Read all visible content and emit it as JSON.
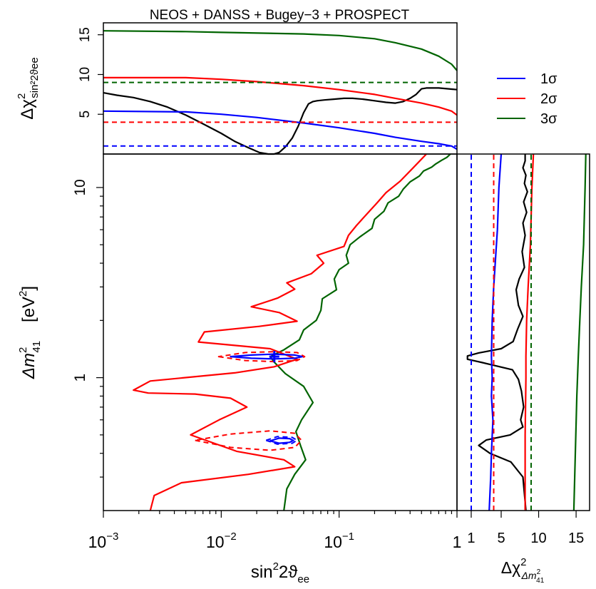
{
  "chart_data": [
    {
      "panel": "top",
      "type": "line",
      "title": "NEOS + DANSS + Bugey−3 + PROSPECT",
      "ylabel_main": "Δχ",
      "ylabel_sup": "2",
      "ylabel_sub": "sin²2ϑee",
      "xscale": "log",
      "xlim": [
        0.001,
        1
      ],
      "ylim": [
        0,
        16.5
      ],
      "yticks": [
        5,
        10,
        15
      ],
      "ytick_labels": [
        "5",
        "10",
        "15"
      ],
      "series": [
        {
          "name": "Δχ² profile",
          "color": "#000000",
          "x": [
            0.001,
            0.0013,
            0.0018,
            0.0025,
            0.0035,
            0.005,
            0.007,
            0.01,
            0.013,
            0.017,
            0.021,
            0.025,
            0.028,
            0.031,
            0.035,
            0.04,
            0.045,
            0.05,
            0.055,
            0.06,
            0.065,
            0.075,
            0.09,
            0.11,
            0.13,
            0.16,
            0.2,
            0.25,
            0.3,
            0.35,
            0.4,
            0.45,
            0.5,
            0.55,
            0.6,
            0.7,
            0.85,
            1
          ],
          "y": [
            7.7,
            7.4,
            7.1,
            6.6,
            5.9,
            4.9,
            3.8,
            2.6,
            1.6,
            0.8,
            0.2,
            0.0,
            0.0,
            0.2,
            0.9,
            2.0,
            3.5,
            5.2,
            6.3,
            6.6,
            6.7,
            6.8,
            6.9,
            7.0,
            7.0,
            6.9,
            6.7,
            6.5,
            6.4,
            6.6,
            7.0,
            7.5,
            8.2,
            8.3,
            8.3,
            8.3,
            8.2,
            8.1
          ]
        },
        {
          "name": "3σ curve",
          "color": "#006400",
          "x": [
            0.001,
            0.005,
            0.01,
            0.05,
            0.1,
            0.2,
            0.3,
            0.5,
            0.7,
            0.9,
            1
          ],
          "y": [
            15.5,
            15.4,
            15.3,
            15.1,
            14.9,
            14.5,
            14.0,
            13.2,
            12.3,
            11.3,
            10.5
          ]
        },
        {
          "name": "2σ curve",
          "color": "#ff0000",
          "x": [
            0.001,
            0.005,
            0.01,
            0.02,
            0.05,
            0.1,
            0.2,
            0.3,
            0.5,
            0.7,
            0.9,
            1
          ],
          "y": [
            9.6,
            9.6,
            9.4,
            9.1,
            8.6,
            8.1,
            7.5,
            7.0,
            6.4,
            5.9,
            5.4,
            4.9
          ]
        },
        {
          "name": "1σ curve",
          "color": "#0000ff",
          "x": [
            0.001,
            0.005,
            0.01,
            0.02,
            0.05,
            0.1,
            0.2,
            0.3,
            0.5,
            0.7,
            0.9,
            1
          ],
          "y": [
            5.4,
            5.3,
            5.0,
            4.6,
            3.9,
            3.3,
            2.6,
            2.1,
            1.6,
            1.3,
            1.0,
            0.6
          ]
        },
        {
          "name": "3σ level",
          "color": "#006400",
          "dashed": true,
          "x": [
            0.001,
            1
          ],
          "y": [
            9.0,
            9.0
          ]
        },
        {
          "name": "2σ level",
          "color": "#ff0000",
          "dashed": true,
          "x": [
            0.001,
            1
          ],
          "y": [
            4.0,
            4.0
          ]
        },
        {
          "name": "1σ level",
          "color": "#0000ff",
          "dashed": true,
          "x": [
            0.001,
            1
          ],
          "y": [
            1.0,
            1.0
          ]
        }
      ]
    },
    {
      "panel": "main",
      "type": "line",
      "xlabel_main": "sin",
      "xlabel_sup": "2",
      "xlabel_mid": "2ϑ",
      "xlabel_sub": "ee",
      "ylabel_main": "Δm",
      "ylabel_sup": "2",
      "ylabel_sub": "41",
      "ylabel_unit": "[eV",
      "ylabel_unit_sup": "2",
      "ylabel_unit_end": "]",
      "xscale": "log",
      "yscale": "log",
      "xlim": [
        0.001,
        1
      ],
      "ylim": [
        0.2,
        15
      ],
      "xticks": [
        0.001,
        0.01,
        0.1,
        1
      ],
      "xtick_labels": [
        {
          "base": "10",
          "exp": "−3"
        },
        {
          "base": "10",
          "exp": "−2"
        },
        {
          "base": "10",
          "exp": "−1"
        },
        {
          "base": "1",
          "exp": ""
        }
      ],
      "yticks": [
        1,
        10
      ],
      "ytick_labels": [
        "1",
        "10"
      ],
      "best_fit": {
        "x": 0.0282,
        "y": 1.29,
        "color": "#0000ff"
      },
      "series": [
        {
          "name": "3σ exclusion",
          "color": "#006400",
          "x": [
            0.034,
            0.036,
            0.042,
            0.052,
            0.047,
            0.043,
            0.048,
            0.06,
            0.05,
            0.035,
            0.028,
            0.026,
            0.034,
            0.046,
            0.05,
            0.064,
            0.07,
            0.072,
            0.095,
            0.091,
            0.1,
            0.12,
            0.115,
            0.124,
            0.15,
            0.19,
            0.2,
            0.24,
            0.26,
            0.32,
            0.35,
            0.4,
            0.48,
            0.52,
            0.61,
            0.66,
            0.74,
            0.82,
            0.88
          ],
          "y": [
            0.2,
            0.26,
            0.31,
            0.37,
            0.44,
            0.52,
            0.6,
            0.74,
            0.9,
            1.05,
            1.21,
            1.29,
            1.4,
            1.58,
            1.78,
            2.0,
            2.26,
            2.6,
            2.9,
            3.3,
            3.7,
            4.0,
            4.4,
            5.0,
            5.5,
            6.1,
            6.8,
            7.5,
            8.3,
            9.0,
            9.8,
            10.7,
            11.5,
            12.2,
            12.8,
            13.3,
            13.9,
            14.4,
            15.0
          ]
        },
        {
          "name": "2σ exclusion",
          "color": "#ff0000",
          "x": [
            0.0025,
            0.0027,
            0.0046,
            0.017,
            0.042,
            0.034,
            0.0135,
            0.0055,
            0.0096,
            0.0165,
            0.012,
            0.006,
            0.0024,
            0.0018,
            0.0025,
            0.013,
            0.028,
            0.044,
            0.026,
            0.0064,
            0.0072,
            0.021,
            0.044,
            0.031,
            0.018,
            0.03,
            0.042,
            0.036,
            0.058,
            0.074,
            0.065,
            0.11,
            0.12,
            0.14,
            0.17,
            0.21,
            0.25,
            0.33,
            0.42,
            0.55
          ],
          "y": [
            0.2,
            0.24,
            0.28,
            0.31,
            0.34,
            0.37,
            0.41,
            0.5,
            0.6,
            0.7,
            0.78,
            0.82,
            0.83,
            0.86,
            0.96,
            1.06,
            1.14,
            1.25,
            1.42,
            1.54,
            1.74,
            1.86,
            1.98,
            2.2,
            2.36,
            2.62,
            2.92,
            3.15,
            3.52,
            4.0,
            4.4,
            4.9,
            5.6,
            6.3,
            7.2,
            8.3,
            9.4,
            10.8,
            12.6,
            15.0
          ]
        },
        {
          "name": "1σ ellipse A",
          "color": "#0000ff",
          "closed": true,
          "x": [
            0.012,
            0.018,
            0.028,
            0.042,
            0.049,
            0.042,
            0.028,
            0.018,
            0.012
          ],
          "y": [
            1.29,
            1.265,
            1.255,
            1.265,
            1.29,
            1.315,
            1.33,
            1.315,
            1.29
          ]
        },
        {
          "name": "1σ ellipse B",
          "color": "#0000ff",
          "closed": true,
          "x": [
            0.026,
            0.031,
            0.038,
            0.041,
            0.038,
            0.031,
            0.026
          ],
          "y": [
            0.465,
            0.452,
            0.457,
            0.467,
            0.478,
            0.481,
            0.465
          ]
        },
        {
          "name": "2σ ellipse A",
          "color": "#ff0000",
          "closed": true,
          "dashed": true,
          "x": [
            0.0095,
            0.016,
            0.028,
            0.044,
            0.051,
            0.044,
            0.028,
            0.016,
            0.0095
          ],
          "y": [
            1.29,
            1.23,
            1.215,
            1.23,
            1.29,
            1.355,
            1.37,
            1.355,
            1.29
          ]
        },
        {
          "name": "2σ ellipse B",
          "color": "#ff0000",
          "closed": true,
          "dashed": true,
          "x": [
            0.006,
            0.012,
            0.026,
            0.042,
            0.048,
            0.042,
            0.026,
            0.012,
            0.006
          ],
          "y": [
            0.468,
            0.43,
            0.415,
            0.43,
            0.468,
            0.51,
            0.525,
            0.505,
            0.468
          ]
        },
        {
          "name": "3σ ellipse B",
          "color": "#0000ff",
          "closed": true,
          "dashed": true,
          "x": [
            0.024,
            0.03,
            0.04,
            0.044,
            0.04,
            0.03,
            0.024
          ],
          "y": [
            0.468,
            0.447,
            0.452,
            0.468,
            0.485,
            0.49,
            0.468
          ]
        }
      ]
    },
    {
      "panel": "right",
      "type": "line",
      "xlabel_main": "Δχ",
      "xlabel_sup": "2",
      "xlabel_sub": "Δm",
      "xlabel_sub_sup": "2",
      "xlabel_sub_sub": "41",
      "xlim": [
        -0.9,
        16.8
      ],
      "ylim": [
        0.2,
        15
      ],
      "yscale": "log",
      "xticks": [
        1,
        5,
        10,
        15
      ],
      "xtick_labels": [
        "1",
        "5",
        "10",
        "15"
      ],
      "series": [
        {
          "name": "Δχ² profile",
          "color": "#000000",
          "x": [
            8.2,
            8.2,
            7.9,
            8.3,
            8.1,
            8.5,
            8.0,
            8.4,
            7.9,
            8.2,
            7.8,
            8.1,
            7.4,
            7.0,
            7.3,
            7.9,
            7.2,
            6.6,
            5.0,
            2.0,
            0.5,
            0.5,
            2.5,
            6.5,
            7.3,
            7.7,
            8.0,
            7.6,
            7.9,
            6.2,
            3.0,
            2.0,
            3.5,
            6.3,
            7.9,
            8.3
          ],
          "y": [
            15.0,
            13.8,
            12.7,
            11.6,
            10.5,
            9.5,
            8.4,
            7.4,
            6.5,
            5.6,
            4.6,
            3.8,
            3.3,
            2.9,
            2.4,
            2.1,
            1.8,
            1.55,
            1.42,
            1.35,
            1.3,
            1.25,
            1.2,
            1.1,
            0.98,
            0.85,
            0.7,
            0.6,
            0.55,
            0.5,
            0.47,
            0.44,
            0.4,
            0.36,
            0.3,
            0.2
          ]
        },
        {
          "name": "1σ curve",
          "color": "#0000ff",
          "x": [
            5.0,
            4.7,
            4.5,
            4.0,
            3.8,
            3.7,
            3.8,
            3.7,
            3.9,
            3.7,
            3.6,
            3.4
          ],
          "y": [
            15.0,
            10.0,
            6.0,
            3.0,
            2.0,
            1.3,
            1.0,
            0.8,
            0.6,
            0.4,
            0.3,
            0.2
          ]
        },
        {
          "name": "2σ curve",
          "color": "#ff0000",
          "x": [
            9.3,
            9.1,
            8.9,
            8.6,
            8.4,
            8.3,
            8.3,
            8.2,
            8.2
          ],
          "y": [
            15.0,
            10.0,
            5.0,
            3.0,
            2.0,
            1.3,
            1.0,
            0.5,
            0.2
          ]
        },
        {
          "name": "3σ curve",
          "color": "#006400",
          "x": [
            16.3,
            16.2,
            16.0,
            15.7,
            15.5,
            15.3,
            15.1,
            14.9,
            14.7
          ],
          "y": [
            15.0,
            10.0,
            5.0,
            3.0,
            2.0,
            1.3,
            0.8,
            0.4,
            0.2
          ]
        },
        {
          "name": "1σ level",
          "color": "#0000ff",
          "dashed": true,
          "x": [
            1.0,
            1.0
          ],
          "y": [
            0.2,
            15.0
          ]
        },
        {
          "name": "2σ level",
          "color": "#ff0000",
          "dashed": true,
          "x": [
            4.0,
            4.0
          ],
          "y": [
            0.2,
            15.0
          ]
        },
        {
          "name": "3σ level",
          "color": "#006400",
          "dashed": true,
          "x": [
            9.0,
            9.0
          ],
          "y": [
            0.2,
            15.0
          ]
        }
      ]
    }
  ],
  "legend": {
    "placement": "top-right",
    "items": [
      {
        "label": "1σ",
        "color": "#0000ff"
      },
      {
        "label": "2σ",
        "color": "#ff0000"
      },
      {
        "label": "3σ",
        "color": "#006400"
      }
    ]
  }
}
